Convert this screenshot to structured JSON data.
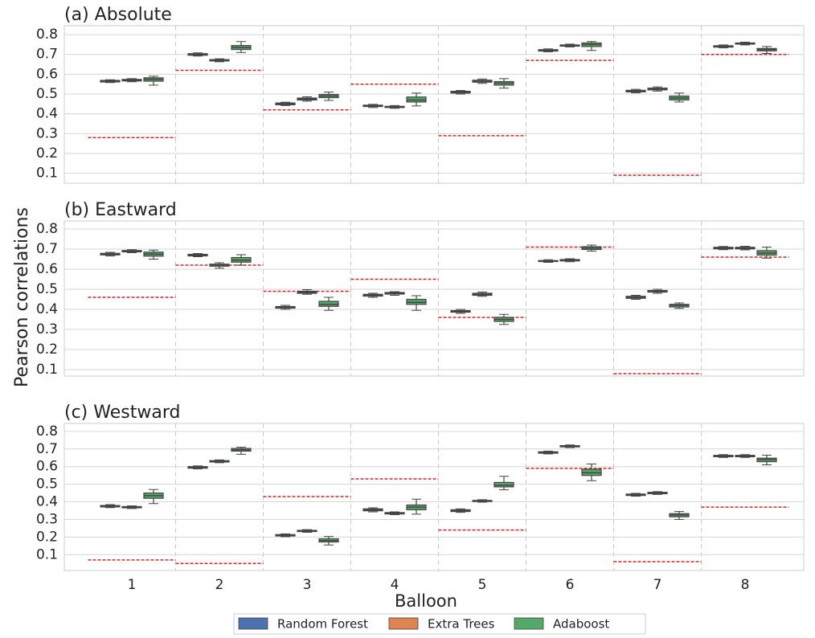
{
  "chart_data": [
    {
      "type": "box",
      "title": "(a) Absolute",
      "ylim": [
        0.05,
        0.845
      ],
      "yticks": [
        0.1,
        0.2,
        0.3,
        0.4,
        0.5,
        0.6,
        0.7,
        0.8
      ],
      "grid": true,
      "categories": [
        "1",
        "2",
        "3",
        "4",
        "5",
        "6",
        "7",
        "8"
      ],
      "baseline": [
        0.28,
        0.62,
        0.42,
        0.55,
        0.29,
        0.67,
        0.09,
        0.7
      ],
      "baseline_color": "#d62728",
      "series": [
        {
          "name": "Random Forest",
          "color": "#4c72b0",
          "boxes": [
            [
              0.558,
              0.561,
              0.565,
              0.569,
              0.572
            ],
            [
              0.692,
              0.696,
              0.7,
              0.704,
              0.708
            ],
            [
              0.442,
              0.446,
              0.45,
              0.455,
              0.459
            ],
            [
              0.432,
              0.437,
              0.44,
              0.444,
              0.448
            ],
            [
              0.5,
              0.505,
              0.51,
              0.514,
              0.518
            ],
            [
              0.713,
              0.717,
              0.72,
              0.724,
              0.728
            ],
            [
              0.506,
              0.511,
              0.515,
              0.519,
              0.524
            ],
            [
              0.733,
              0.737,
              0.74,
              0.744,
              0.748
            ]
          ]
        },
        {
          "name": "Extra Trees",
          "color": "#dd8452",
          "boxes": [
            [
              0.562,
              0.566,
              0.57,
              0.574,
              0.578
            ],
            [
              0.663,
              0.667,
              0.67,
              0.674,
              0.678
            ],
            [
              0.464,
              0.47,
              0.475,
              0.48,
              0.486
            ],
            [
              0.428,
              0.432,
              0.435,
              0.438,
              0.442
            ],
            [
              0.554,
              0.56,
              0.565,
              0.57,
              0.576
            ],
            [
              0.738,
              0.742,
              0.745,
              0.748,
              0.752
            ],
            [
              0.515,
              0.521,
              0.525,
              0.53,
              0.536
            ],
            [
              0.748,
              0.752,
              0.755,
              0.758,
              0.762
            ]
          ]
        },
        {
          "name": "Adaboost",
          "color": "#55a868",
          "boxes": [
            [
              0.545,
              0.565,
              0.575,
              0.582,
              0.59
            ],
            [
              0.71,
              0.725,
              0.735,
              0.745,
              0.765
            ],
            [
              0.468,
              0.482,
              0.49,
              0.498,
              0.51
            ],
            [
              0.44,
              0.46,
              0.47,
              0.485,
              0.505
            ],
            [
              0.53,
              0.545,
              0.555,
              0.563,
              0.578
            ],
            [
              0.72,
              0.74,
              0.75,
              0.758,
              0.765
            ],
            [
              0.46,
              0.47,
              0.48,
              0.49,
              0.505
            ],
            [
              0.705,
              0.718,
              0.725,
              0.73,
              0.74
            ]
          ]
        }
      ]
    },
    {
      "type": "box",
      "title": "(b) Eastward",
      "ylabel": "Pearson correlations",
      "ylim": [
        0.068,
        0.84
      ],
      "yticks": [
        0.1,
        0.2,
        0.3,
        0.4,
        0.5,
        0.6,
        0.7,
        0.8
      ],
      "grid": true,
      "categories": [
        "1",
        "2",
        "3",
        "4",
        "5",
        "6",
        "7",
        "8"
      ],
      "baseline": [
        0.46,
        0.62,
        0.49,
        0.55,
        0.36,
        0.71,
        0.08,
        0.66
      ],
      "baseline_color": "#d62728",
      "series": [
        {
          "name": "Random Forest",
          "color": "#4c72b0",
          "boxes": [
            [
              0.666,
              0.671,
              0.675,
              0.679,
              0.684
            ],
            [
              0.662,
              0.666,
              0.67,
              0.674,
              0.678
            ],
            [
              0.4,
              0.406,
              0.41,
              0.414,
              0.42
            ],
            [
              0.46,
              0.466,
              0.47,
              0.475,
              0.48
            ],
            [
              0.38,
              0.386,
              0.39,
              0.394,
              0.4
            ],
            [
              0.634,
              0.638,
              0.64,
              0.643,
              0.647
            ],
            [
              0.45,
              0.455,
              0.46,
              0.465,
              0.47
            ],
            [
              0.697,
              0.701,
              0.705,
              0.709,
              0.713
            ]
          ]
        },
        {
          "name": "Extra Trees",
          "color": "#dd8452",
          "boxes": [
            [
              0.682,
              0.686,
              0.69,
              0.693,
              0.697
            ],
            [
              0.605,
              0.615,
              0.62,
              0.625,
              0.632
            ],
            [
              0.475,
              0.48,
              0.485,
              0.49,
              0.498
            ],
            [
              0.47,
              0.476,
              0.48,
              0.484,
              0.488
            ],
            [
              0.465,
              0.47,
              0.475,
              0.48,
              0.486
            ],
            [
              0.637,
              0.641,
              0.645,
              0.648,
              0.652
            ],
            [
              0.48,
              0.486,
              0.49,
              0.494,
              0.5
            ],
            [
              0.696,
              0.701,
              0.705,
              0.709,
              0.714
            ]
          ]
        },
        {
          "name": "Adaboost",
          "color": "#55a868",
          "boxes": [
            [
              0.65,
              0.665,
              0.675,
              0.685,
              0.695
            ],
            [
              0.62,
              0.635,
              0.645,
              0.658,
              0.672
            ],
            [
              0.395,
              0.415,
              0.425,
              0.44,
              0.46
            ],
            [
              0.395,
              0.425,
              0.435,
              0.45,
              0.468
            ],
            [
              0.325,
              0.34,
              0.35,
              0.36,
              0.375
            ],
            [
              0.69,
              0.698,
              0.705,
              0.712,
              0.72
            ],
            [
              0.405,
              0.412,
              0.42,
              0.425,
              0.432
            ],
            [
              0.655,
              0.67,
              0.68,
              0.692,
              0.71
            ]
          ]
        }
      ]
    },
    {
      "type": "box",
      "title": "(c) Westward",
      "xlabel": "Balloon",
      "ylim": [
        0.01,
        0.845
      ],
      "yticks": [
        0.1,
        0.2,
        0.3,
        0.4,
        0.5,
        0.6,
        0.7,
        0.8
      ],
      "grid": true,
      "categories": [
        "1",
        "2",
        "3",
        "4",
        "5",
        "6",
        "7",
        "8"
      ],
      "baseline": [
        0.07,
        0.05,
        0.43,
        0.53,
        0.24,
        0.59,
        0.06,
        0.37
      ],
      "baseline_color": "#d62728",
      "series": [
        {
          "name": "Random Forest",
          "color": "#4c72b0",
          "boxes": [
            [
              0.367,
              0.371,
              0.375,
              0.379,
              0.384
            ],
            [
              0.587,
              0.591,
              0.595,
              0.6,
              0.604
            ],
            [
              0.202,
              0.206,
              0.21,
              0.214,
              0.218
            ],
            [
              0.343,
              0.349,
              0.355,
              0.36,
              0.366
            ],
            [
              0.34,
              0.345,
              0.35,
              0.355,
              0.36
            ],
            [
              0.672,
              0.676,
              0.68,
              0.684,
              0.688
            ],
            [
              0.432,
              0.436,
              0.44,
              0.444,
              0.448
            ],
            [
              0.652,
              0.656,
              0.66,
              0.664,
              0.668
            ]
          ]
        },
        {
          "name": "Extra Trees",
          "color": "#dd8452",
          "boxes": [
            [
              0.362,
              0.366,
              0.37,
              0.373,
              0.377
            ],
            [
              0.622,
              0.626,
              0.63,
              0.634,
              0.638
            ],
            [
              0.227,
              0.231,
              0.235,
              0.238,
              0.242
            ],
            [
              0.327,
              0.331,
              0.335,
              0.339,
              0.343
            ],
            [
              0.398,
              0.402,
              0.405,
              0.408,
              0.412
            ],
            [
              0.708,
              0.712,
              0.715,
              0.719,
              0.723
            ],
            [
              0.442,
              0.446,
              0.45,
              0.454,
              0.458
            ],
            [
              0.652,
              0.656,
              0.66,
              0.664,
              0.668
            ]
          ]
        },
        {
          "name": "Adaboost",
          "color": "#55a868",
          "boxes": [
            [
              0.39,
              0.42,
              0.435,
              0.45,
              0.47
            ],
            [
              0.67,
              0.688,
              0.695,
              0.703,
              0.71
            ],
            [
              0.155,
              0.172,
              0.18,
              0.19,
              0.203
            ],
            [
              0.33,
              0.355,
              0.37,
              0.382,
              0.415
            ],
            [
              0.468,
              0.485,
              0.495,
              0.51,
              0.545
            ],
            [
              0.52,
              0.55,
              0.565,
              0.585,
              0.615
            ],
            [
              0.3,
              0.315,
              0.325,
              0.333,
              0.345
            ],
            [
              0.61,
              0.628,
              0.64,
              0.648,
              0.665
            ]
          ]
        }
      ]
    }
  ]
}
